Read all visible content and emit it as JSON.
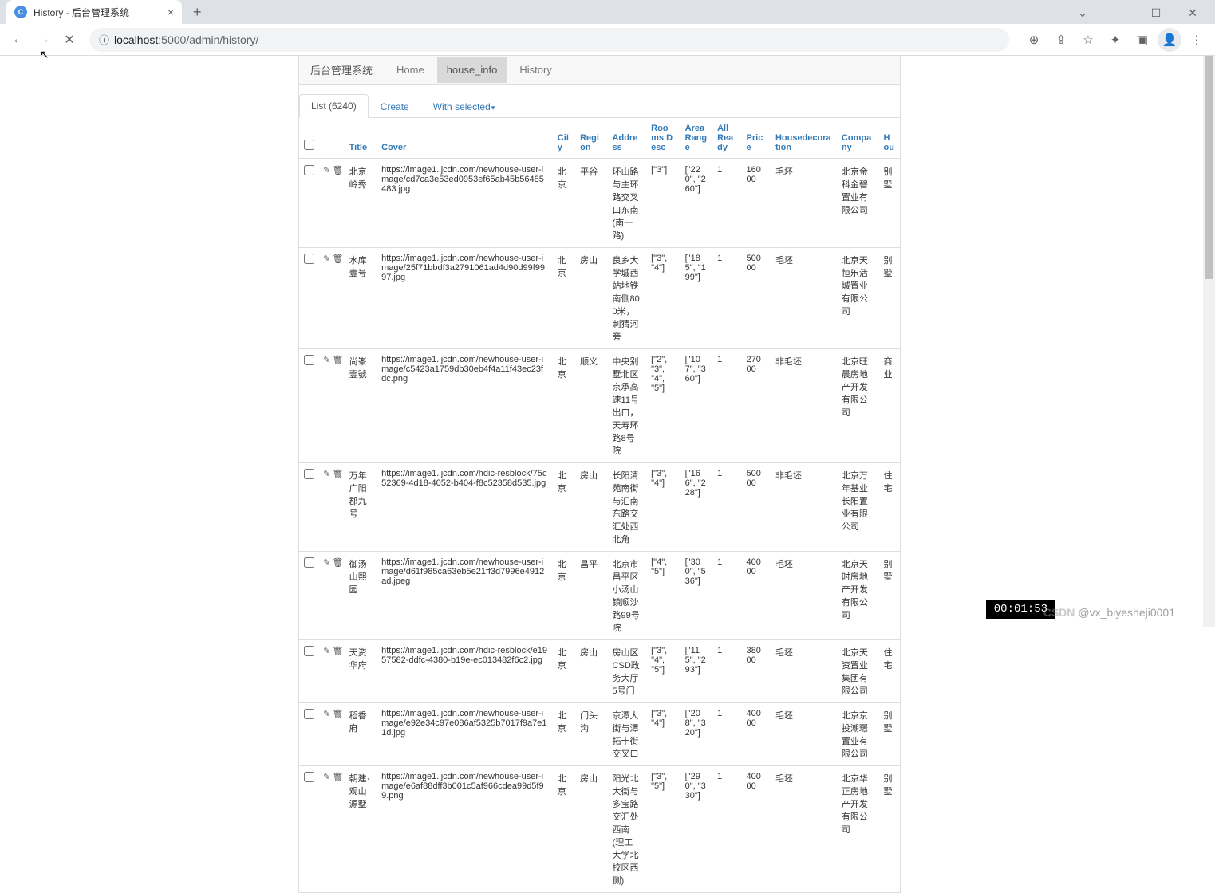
{
  "browser": {
    "tab_title": "History - 后台管理系统",
    "url_display_host": "localhost",
    "url_display_port": ":5000",
    "url_display_path": "/admin/history/"
  },
  "nav": {
    "brand": "后台管理系统",
    "items": [
      "Home",
      "house_info",
      "History"
    ],
    "active_index": 1
  },
  "subtabs": {
    "list_label": "List (6240)",
    "create_label": "Create",
    "with_selected_label": "With selected"
  },
  "columns": {
    "title": "Title",
    "cover": "Cover",
    "city": "City",
    "region": "Region",
    "address": "Address",
    "rooms": "Rooms Desc",
    "area": "Area Range",
    "ready": "All Ready",
    "price": "Price",
    "deco": "Housedecoration",
    "company": "Company",
    "hou": "Hou"
  },
  "rows": [
    {
      "title": "北京岭秀",
      "cover": "https://image1.ljcdn.com/newhouse-user-image/cd7ca3e53ed0953ef65ab45b56485483.jpg",
      "city": "北京",
      "region": "平谷",
      "address": "环山路与主环路交叉口东南 (南一路)",
      "rooms": "[\"3\"]",
      "area": "[\"220\", \"260\"]",
      "ready": "1",
      "price": "16000",
      "deco": "毛坯",
      "company": "北京金科金碧置业有限公司",
      "hou": "别墅"
    },
    {
      "title": "水库壹号",
      "cover": "https://image1.ljcdn.com/newhouse-user-image/25f71bbdf3a2791061ad4d90d99f9997.jpg",
      "city": "北京",
      "region": "房山",
      "address": "良乡大学城西站地铁南侧800米，刺猬河旁",
      "rooms": "[\"3\", \"4\"]",
      "area": "[\"185\", \"199\"]",
      "ready": "1",
      "price": "50000",
      "deco": "毛坯",
      "company": "北京天恒乐活城置业有限公司",
      "hou": "别墅"
    },
    {
      "title": "尚峯壹號",
      "cover": "https://image1.ljcdn.com/newhouse-user-image/c5423a1759db30eb4f4a11f43ec23fdc.png",
      "city": "北京",
      "region": "顺义",
      "address": "中央别墅北区京承高速11号出口，天寿环路8号院",
      "rooms": "[\"2\", \"3\", \"4\", \"5\"]",
      "area": "[\"107\", \"360\"]",
      "ready": "1",
      "price": "27000",
      "deco": "非毛坯",
      "company": "北京旺晨房地产开发有限公司",
      "hou": "商业"
    },
    {
      "title": "万年广阳郡九号",
      "cover": "https://image1.ljcdn.com/hdic-resblock/75c52369-4d18-4052-b404-f8c52358d535.jpg",
      "city": "北京",
      "region": "房山",
      "address": "长阳清苑南街与汇南东路交汇处西北角",
      "rooms": "[\"3\", \"4\"]",
      "area": "[\"166\", \"228\"]",
      "ready": "1",
      "price": "50000",
      "deco": "非毛坯",
      "company": "北京万年基业长阳置业有限公司",
      "hou": "住宅"
    },
    {
      "title": "御汤山熙园",
      "cover": "https://image1.ljcdn.com/newhouse-user-image/d61f985ca63eb5e21ff3d7996e4912ad.jpeg",
      "city": "北京",
      "region": "昌平",
      "address": "北京市昌平区小汤山镇顺沙路99号院",
      "rooms": "[\"4\", \"5\"]",
      "area": "[\"300\", \"536\"]",
      "ready": "1",
      "price": "40000",
      "deco": "毛坯",
      "company": "北京天时房地产开发有限公司",
      "hou": "别墅"
    },
    {
      "title": "天资华府",
      "cover": "https://image1.ljcdn.com/hdic-resblock/e1957582-ddfc-4380-b19e-ec013482f6c2.jpg",
      "city": "北京",
      "region": "房山",
      "address": "房山区CSD政务大厅5号门",
      "rooms": "[\"3\", \"4\", \"5\"]",
      "area": "[\"115\", \"293\"]",
      "ready": "1",
      "price": "38000",
      "deco": "毛坯",
      "company": "北京天资置业集团有限公司",
      "hou": "住宅"
    },
    {
      "title": "稻香府",
      "cover": "https://image1.ljcdn.com/newhouse-user-image/e92e34c97e086af5325b7017f9a7e11d.jpg",
      "city": "北京",
      "region": "门头沟",
      "address": "京潭大街与潭拓十街交叉口",
      "rooms": "[\"3\", \"4\"]",
      "area": "[\"208\", \"320\"]",
      "ready": "1",
      "price": "40000",
      "deco": "毛坯",
      "company": "北京京投潮璟置业有限公司",
      "hou": "别墅"
    },
    {
      "title": "朝建·观山源墅",
      "cover": "https://image1.ljcdn.com/newhouse-user-image/e6af88dff3b001c5af966cdea99d5f99.png",
      "city": "北京",
      "region": "房山",
      "address": "阳光北大街与多宝路交汇处西南 (理工大学北校区西侧)",
      "rooms": "[\"3\", \"5\"]",
      "area": "[\"290\", \"330\"]",
      "ready": "1",
      "price": "40000",
      "deco": "毛坯",
      "company": "北京华正房地产开发有限公司",
      "hou": "别墅"
    }
  ],
  "overlay": {
    "timer": "00:01:53",
    "watermark_handle": "@vx_biyesheji0001",
    "watermark_brand": "CSDN"
  },
  "colors": {
    "link": "#337ab7",
    "border": "#dddddd",
    "nav_bg": "#f8f8f8",
    "active_bg": "#d9d9d9",
    "text": "#333333"
  }
}
